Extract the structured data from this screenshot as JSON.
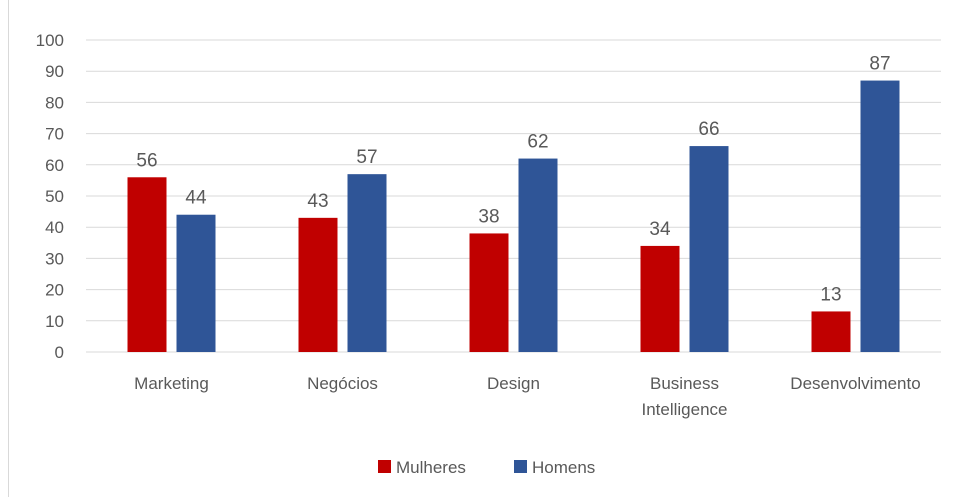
{
  "chart_data": {
    "type": "bar",
    "categories": [
      [
        "Marketing"
      ],
      [
        "Negócios"
      ],
      [
        "Design"
      ],
      [
        "Business",
        "Intelligence"
      ],
      [
        "Desenvolvimento"
      ]
    ],
    "series": [
      {
        "name": "Mulheres",
        "values": [
          56,
          43,
          38,
          34,
          13
        ],
        "color": "#C00000"
      },
      {
        "name": "Homens",
        "values": [
          44,
          57,
          62,
          66,
          87
        ],
        "color": "#2F5597"
      }
    ],
    "ylim": [
      0,
      100
    ],
    "yticks": [
      0,
      10,
      20,
      30,
      40,
      50,
      60,
      70,
      80,
      90,
      100
    ],
    "grid": true,
    "legend": "bottom",
    "data_labels": true,
    "title": "",
    "xlabel": "",
    "ylabel": ""
  },
  "colors": {
    "grid": "#d9d9d9",
    "text": "#595959"
  }
}
